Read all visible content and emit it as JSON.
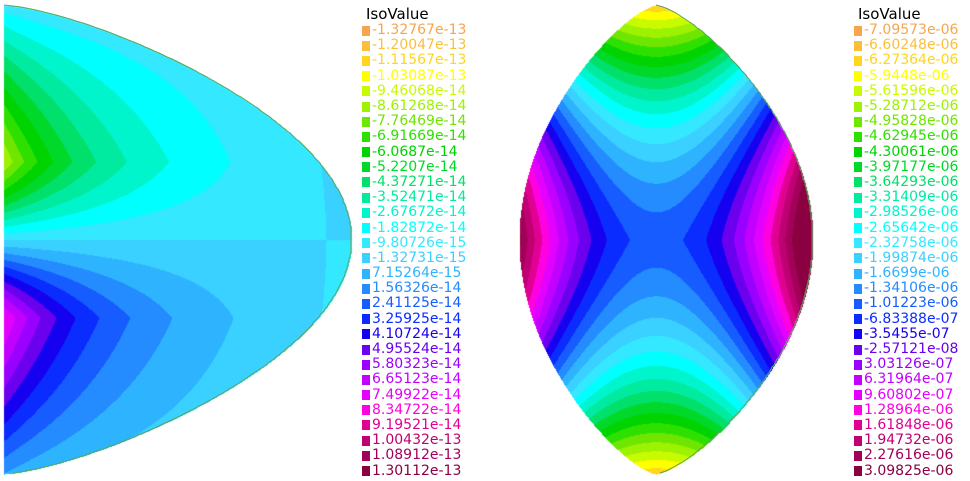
{
  "chart_data": [
    {
      "type": "heatmap",
      "title": "",
      "legend_title": "IsoValue",
      "legend_placement": "right",
      "levels": [
        "-1.32767e-13",
        "-1.20047e-13",
        "-1.11567e-13",
        "-1.03087e-13",
        "-9.46068e-14",
        "-8.61268e-14",
        "-7.76469e-14",
        "-6.91669e-14",
        "-6.0687e-14",
        "-5.2207e-14",
        "-4.37271e-14",
        "-3.52471e-14",
        "-2.67672e-14",
        "-1.82872e-14",
        "-9.80726e-15",
        "-1.32731e-15",
        "7.15264e-15",
        "1.56326e-14",
        "2.41125e-14",
        "3.25925e-14",
        "4.10724e-14",
        "4.95524e-14",
        "5.80323e-14",
        "6.65123e-14",
        "7.49922e-14",
        "8.34722e-14",
        "9.19521e-14",
        "1.00432e-13",
        "1.08912e-13",
        "1.30112e-13"
      ],
      "colors": [
        "#f7a54c",
        "#fbbf3c",
        "#ffd51f",
        "#ffff00",
        "#c8fa00",
        "#9cf200",
        "#6ee600",
        "#2ee000",
        "#00d400",
        "#00d82a",
        "#00e06a",
        "#00eba0",
        "#00f5cc",
        "#00ffff",
        "#33e8ff",
        "#3ad0ff",
        "#2eb4ff",
        "#248cff",
        "#165cff",
        "#0a2cff",
        "#1600f0",
        "#6a00ee",
        "#9a00ff",
        "#c200ff",
        "#e400ff",
        "#ff00e0",
        "#e00092",
        "#be0072",
        "#a3005a",
        "#8a0040"
      ]
    },
    {
      "type": "heatmap",
      "title": "",
      "legend_title": "IsoValue",
      "legend_placement": "right",
      "levels": [
        "-7.09573e-06",
        "-6.60248e-06",
        "-6.27364e-06",
        "-5.9448e-06",
        "-5.61596e-06",
        "-5.28712e-06",
        "-4.95828e-06",
        "-4.62945e-06",
        "-4.30061e-06",
        "-3.97177e-06",
        "-3.64293e-06",
        "-3.31409e-06",
        "-2.98526e-06",
        "-2.65642e-06",
        "-2.32758e-06",
        "-1.99874e-06",
        "-1.6699e-06",
        "-1.34106e-06",
        "-1.01223e-06",
        "-6.83388e-07",
        "-3.5455e-07",
        "-2.57121e-08",
        "3.03126e-07",
        "6.31964e-07",
        "9.60802e-07",
        "1.28964e-06",
        "1.61848e-06",
        "1.94732e-06",
        "2.27616e-06",
        "3.09825e-06"
      ],
      "colors": [
        "#f7a54c",
        "#fbbf3c",
        "#ffd51f",
        "#ffff00",
        "#c8fa00",
        "#9cf200",
        "#6ee600",
        "#2ee000",
        "#00d400",
        "#00d82a",
        "#00e06a",
        "#00eba0",
        "#00f5cc",
        "#00ffff",
        "#33e8ff",
        "#3ad0ff",
        "#2eb4ff",
        "#248cff",
        "#165cff",
        "#0a2cff",
        "#1600f0",
        "#6a00ee",
        "#9a00ff",
        "#c200ff",
        "#e400ff",
        "#ff00e0",
        "#e00092",
        "#be0072",
        "#a3005a",
        "#8a0040"
      ]
    }
  ]
}
